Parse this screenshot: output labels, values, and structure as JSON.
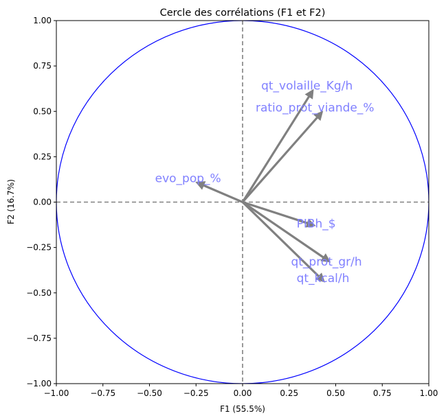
{
  "chart_data": {
    "type": "scatter",
    "title": "Cercle des corrélations (F1 et F2)",
    "xlabel": "F1 (55.5%)",
    "ylabel": "F2 (16.7%)",
    "xlim": [
      -1.0,
      1.0
    ],
    "ylim": [
      -1.0,
      1.0
    ],
    "xticks": [
      "−1.00",
      "−0.75",
      "−0.50",
      "−0.25",
      "0.00",
      "0.25",
      "0.50",
      "0.75",
      "1.00"
    ],
    "yticks": [
      "−1.00",
      "−0.75",
      "−0.50",
      "−0.25",
      "0.00",
      "0.25",
      "0.50",
      "0.75",
      "1.00"
    ],
    "grid": false,
    "unit_circle": true,
    "circle_color": "#0000ff",
    "arrow_color": "#808080",
    "label_color": "#8080ff",
    "axis_line_color": "#808080",
    "vectors": [
      {
        "name": "qt_volaille_Kg/h",
        "x": 0.38,
        "y": 0.62,
        "label_x": 0.1,
        "label_y": 0.62
      },
      {
        "name": "ratio_prot_viande_%",
        "x": 0.43,
        "y": 0.5,
        "label_x": 0.07,
        "label_y": 0.5
      },
      {
        "name": "evo_pop_%",
        "x": -0.25,
        "y": 0.11,
        "label_x": -0.47,
        "label_y": 0.11
      },
      {
        "name": "PIBh_$",
        "x": 0.39,
        "y": -0.13,
        "label_x": 0.29,
        "label_y": -0.14
      },
      {
        "name": "qt_prot_gr/h",
        "x": 0.47,
        "y": -0.33,
        "label_x": 0.26,
        "label_y": -0.35
      },
      {
        "name": "qt_kcal/h",
        "x": 0.44,
        "y": -0.44,
        "label_x": 0.29,
        "label_y": -0.44
      }
    ]
  }
}
